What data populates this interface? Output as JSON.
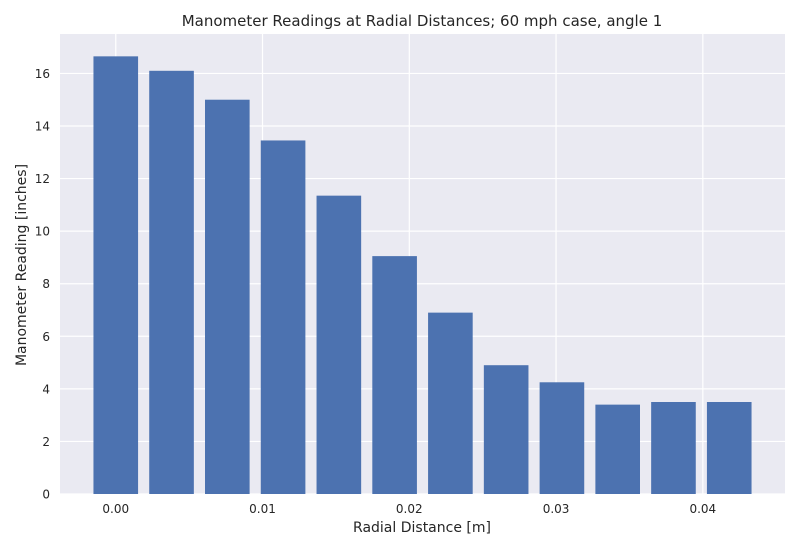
{
  "chart_data": {
    "type": "bar",
    "title": "Manometer Readings at Radial Distances; 60 mph case, angle 1",
    "xlabel": "Radial Distance [m]",
    "ylabel": "Manometer Reading [inches]",
    "x": [
      0.0,
      0.0038,
      0.0076,
      0.0114,
      0.0152,
      0.019,
      0.0228,
      0.0266,
      0.0304,
      0.0342,
      0.038,
      0.0418
    ],
    "values": [
      16.65,
      16.1,
      15.0,
      13.45,
      11.35,
      9.05,
      6.9,
      4.9,
      4.25,
      3.4,
      3.5,
      3.5
    ],
    "xlim": [
      -0.0038,
      0.0456
    ],
    "ylim": [
      0,
      17.5
    ],
    "xticks": [
      0.0,
      0.01,
      0.02,
      0.03,
      0.04
    ],
    "xtick_labels": [
      "0.00",
      "0.01",
      "0.02",
      "0.03",
      "0.04"
    ],
    "yticks": [
      0,
      2,
      4,
      6,
      8,
      10,
      12,
      14,
      16
    ],
    "ytick_labels": [
      "0",
      "2",
      "4",
      "6",
      "8",
      "10",
      "12",
      "14",
      "16"
    ],
    "grid": true,
    "colors": {
      "bar": "#4C72B0",
      "background": "#EAEAF2",
      "grid": "#FFFFFF"
    }
  }
}
